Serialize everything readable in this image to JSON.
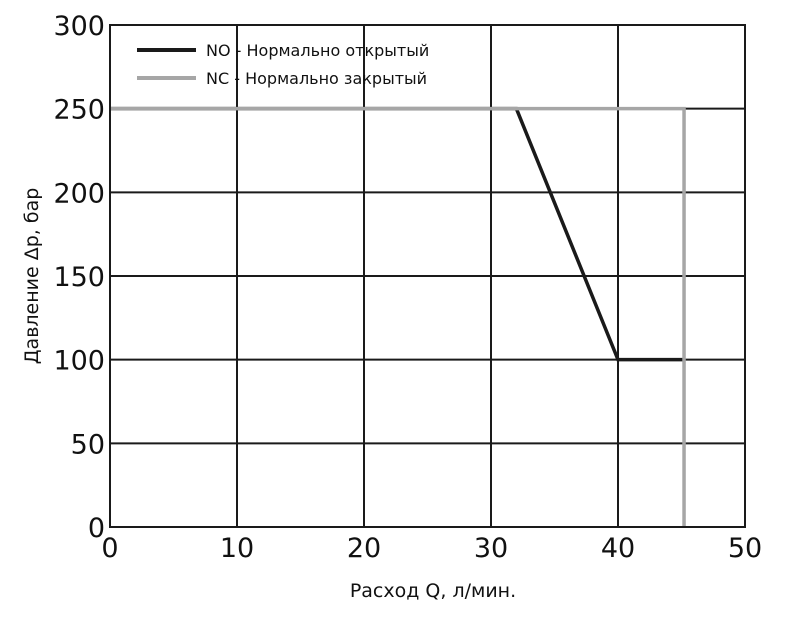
{
  "chart_data": {
    "type": "line",
    "xlabel": "Расход Q, л/мин.",
    "ylabel": "Давление Δp, бар",
    "xlim": [
      0,
      50
    ],
    "ylim": [
      0,
      300
    ],
    "xticks": [
      "0",
      "10",
      "20",
      "30",
      "40",
      "50"
    ],
    "yticks": [
      "0",
      "50",
      "100",
      "150",
      "200",
      "250",
      "300"
    ],
    "grid": true,
    "legend_position": "top-left",
    "series": [
      {
        "name": "NO - Нормально открытый",
        "color": "#1a1a1a",
        "x": [
          0,
          32,
          40,
          45.2
        ],
        "y": [
          250,
          250,
          100,
          100
        ]
      },
      {
        "name": "NC - Нормально закрытый",
        "color": "#a6a6a6",
        "x": [
          0,
          45.2,
          45.2
        ],
        "y": [
          250,
          250,
          0
        ]
      }
    ]
  }
}
